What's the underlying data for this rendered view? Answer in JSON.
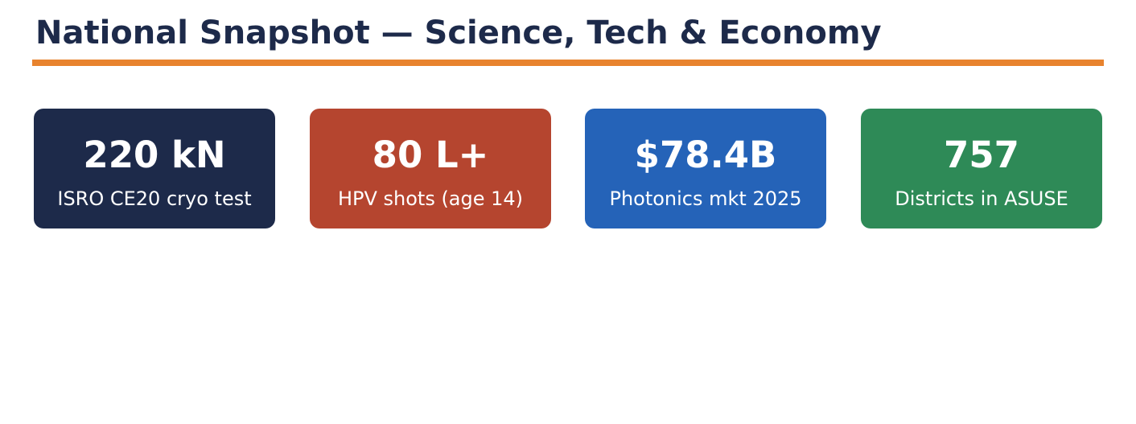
{
  "title": "National Snapshot — Science, Tech & Economy",
  "cards": [
    {
      "value": "220 kN",
      "label": "ISRO CE20 cryo test",
      "color": "#1d2a4a"
    },
    {
      "value": "80 L+",
      "label": "HPV shots (age 14)",
      "color": "#b5452f"
    },
    {
      "value": "$78.4B",
      "label": "Photonics mkt 2025",
      "color": "#2563b8"
    },
    {
      "value": "757",
      "label": "Districts in ASUSE",
      "color": "#2e8a57"
    }
  ]
}
